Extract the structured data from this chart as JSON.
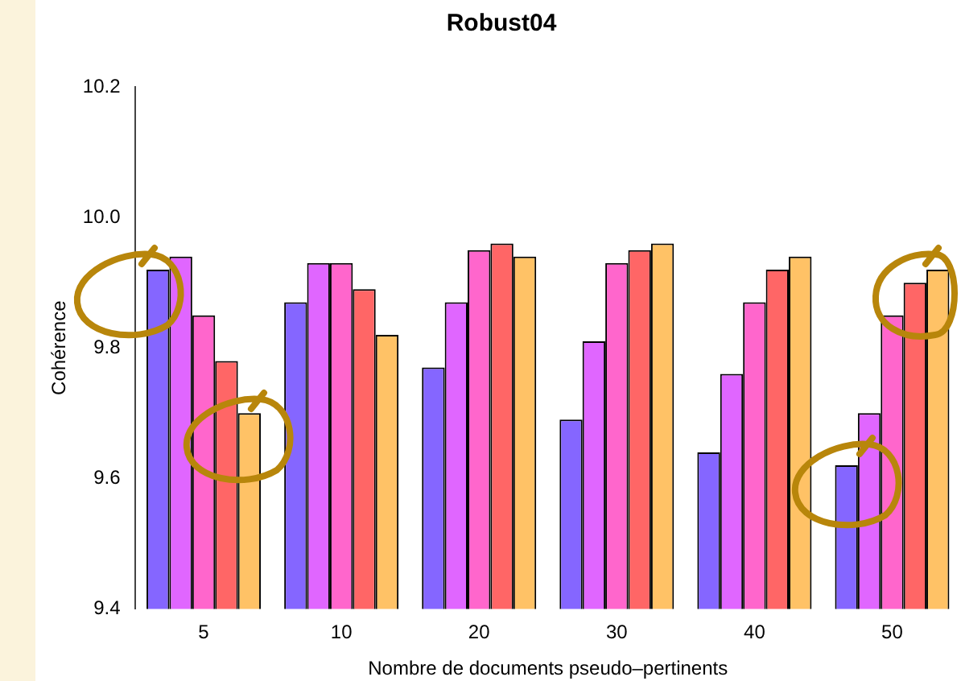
{
  "chart_data": {
    "type": "bar",
    "title": "Robust04",
    "xlabel": "Nombre de documents pseudo–pertinents",
    "ylabel": "Cohérence",
    "categories": [
      "5",
      "10",
      "20",
      "30",
      "40",
      "50"
    ],
    "series": [
      {
        "color": "#8566ff",
        "values": [
          9.92,
          9.87,
          9.77,
          9.69,
          9.64,
          9.62
        ]
      },
      {
        "color": "#e066ff",
        "values": [
          9.94,
          9.93,
          9.87,
          9.81,
          9.76,
          9.7
        ]
      },
      {
        "color": "#ff66cc",
        "values": [
          9.85,
          9.93,
          9.95,
          9.93,
          9.87,
          9.85
        ]
      },
      {
        "color": "#ff6666",
        "values": [
          9.78,
          9.89,
          9.96,
          9.95,
          9.92,
          9.9
        ]
      },
      {
        "color": "#ffc266",
        "values": [
          9.7,
          9.82,
          9.94,
          9.96,
          9.94,
          9.92
        ]
      }
    ],
    "ylim": [
      9.4,
      10.2
    ],
    "yticks": [
      9.4,
      9.6,
      {
        "value": 9.8,
        "label": "9.8"
      },
      {
        "value": 10.0,
        "label": "10.0"
      },
      {
        "value": 10.2,
        "label": "10.2"
      }
    ],
    "grid": false,
    "legend": false
  }
}
